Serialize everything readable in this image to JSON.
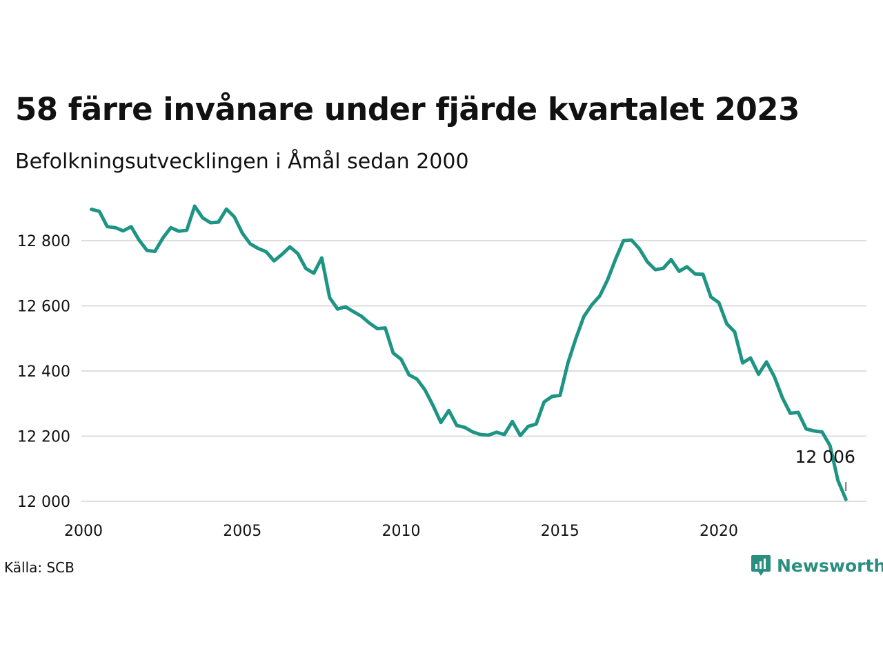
{
  "title": "58 färre invånare under fjärde kvartalet 2023",
  "subtitle": "Befolkningsutvecklingen i Åmål sedan 2000",
  "source": "Källa: SCB",
  "brand": {
    "name": "Newsworthy",
    "icon": "newsworthy-logo-icon",
    "color": "#2a8f80"
  },
  "colors": {
    "line": "#1e9484",
    "grid": "#dddddd"
  },
  "chart_data": {
    "type": "line",
    "title": "58 färre invånare under fjärde kvartalet 2023",
    "subtitle": "Befolkningsutvecklingen i Åmål sedan 2000",
    "xlabel": "",
    "ylabel": "",
    "xlim": [
      2000,
      2025
    ],
    "ylim": [
      12000,
      12900
    ],
    "x_ticks": [
      2000,
      2005,
      2010,
      2015,
      2020
    ],
    "x_tick_labels": [
      "2000",
      "2005",
      "2010",
      "2015",
      "2020"
    ],
    "y_ticks": [
      12000,
      12200,
      12400,
      12600,
      12800
    ],
    "y_tick_labels": [
      "12 000",
      "12 200",
      "12 400",
      "12 600",
      "12 800"
    ],
    "grid": "horizontal",
    "legend": "none",
    "series": [
      {
        "values": [
          [
            2000.25,
            12896
          ],
          [
            2000.5,
            12890
          ],
          [
            2000.75,
            12843
          ],
          [
            2001.0,
            12840
          ],
          [
            2001.25,
            12830
          ],
          [
            2001.5,
            12843
          ],
          [
            2001.75,
            12802
          ],
          [
            2002.0,
            12770
          ],
          [
            2002.25,
            12767
          ],
          [
            2002.5,
            12808
          ],
          [
            2002.75,
            12840
          ],
          [
            2003.0,
            12829
          ],
          [
            2003.25,
            12832
          ],
          [
            2003.5,
            12906
          ],
          [
            2003.75,
            12870
          ],
          [
            2004.0,
            12855
          ],
          [
            2004.25,
            12857
          ],
          [
            2004.5,
            12897
          ],
          [
            2004.75,
            12873
          ],
          [
            2005.0,
            12823
          ],
          [
            2005.25,
            12790
          ],
          [
            2005.5,
            12776
          ],
          [
            2005.75,
            12766
          ],
          [
            2006.0,
            12738
          ],
          [
            2006.25,
            12758
          ],
          [
            2006.5,
            12781
          ],
          [
            2006.75,
            12760
          ],
          [
            2007.0,
            12715
          ],
          [
            2007.25,
            12700
          ],
          [
            2007.5,
            12747
          ],
          [
            2007.75,
            12625
          ],
          [
            2008.0,
            12590
          ],
          [
            2008.25,
            12597
          ],
          [
            2008.5,
            12582
          ],
          [
            2008.75,
            12568
          ],
          [
            2009.0,
            12547
          ],
          [
            2009.25,
            12530
          ],
          [
            2009.5,
            12532
          ],
          [
            2009.75,
            12455
          ],
          [
            2010.0,
            12436
          ],
          [
            2010.25,
            12388
          ],
          [
            2010.5,
            12375
          ],
          [
            2010.75,
            12342
          ],
          [
            2011.0,
            12295
          ],
          [
            2011.25,
            12242
          ],
          [
            2011.5,
            12279
          ],
          [
            2011.75,
            12233
          ],
          [
            2012.0,
            12227
          ],
          [
            2012.25,
            12213
          ],
          [
            2012.5,
            12205
          ],
          [
            2012.75,
            12203
          ],
          [
            2013.0,
            12212
          ],
          [
            2013.25,
            12205
          ],
          [
            2013.5,
            12245
          ],
          [
            2013.75,
            12202
          ],
          [
            2014.0,
            12230
          ],
          [
            2014.25,
            12237
          ],
          [
            2014.5,
            12305
          ],
          [
            2014.75,
            12322
          ],
          [
            2015.0,
            12325
          ],
          [
            2015.25,
            12425
          ],
          [
            2015.5,
            12500
          ],
          [
            2015.75,
            12567
          ],
          [
            2016.0,
            12603
          ],
          [
            2016.25,
            12630
          ],
          [
            2016.5,
            12680
          ],
          [
            2016.75,
            12743
          ],
          [
            2017.0,
            12800
          ],
          [
            2017.25,
            12802
          ],
          [
            2017.5,
            12775
          ],
          [
            2017.75,
            12735
          ],
          [
            2018.0,
            12711
          ],
          [
            2018.25,
            12715
          ],
          [
            2018.5,
            12742
          ],
          [
            2018.75,
            12706
          ],
          [
            2019.0,
            12720
          ],
          [
            2019.25,
            12698
          ],
          [
            2019.5,
            12697
          ],
          [
            2019.75,
            12627
          ],
          [
            2020.0,
            12610
          ],
          [
            2020.25,
            12545
          ],
          [
            2020.5,
            12520
          ],
          [
            2020.75,
            12425
          ],
          [
            2021.0,
            12440
          ],
          [
            2021.25,
            12390
          ],
          [
            2021.5,
            12428
          ],
          [
            2021.75,
            12382
          ],
          [
            2022.0,
            12318
          ],
          [
            2022.25,
            12270
          ],
          [
            2022.5,
            12273
          ],
          [
            2022.75,
            12222
          ],
          [
            2023.0,
            12216
          ],
          [
            2023.25,
            12213
          ],
          [
            2023.5,
            12171
          ],
          [
            2023.75,
            12064
          ],
          [
            2024.0,
            12006
          ]
        ]
      }
    ],
    "annotations": [
      {
        "x": 2024.0,
        "y": 12006,
        "text": "12 006"
      }
    ]
  }
}
